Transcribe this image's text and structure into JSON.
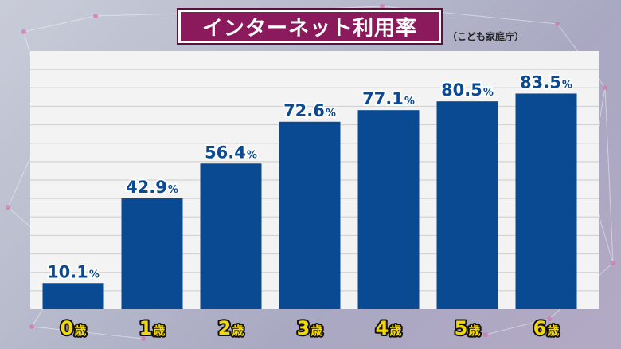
{
  "title": "インターネット利用率",
  "source": "（こども家庭庁）",
  "colors": {
    "bar": "#0a4a93",
    "plot_bg": "#f3f3f3",
    "grid": "#d3d3d3",
    "title_bg": "#8a1a5c",
    "category_text": "#f4d800",
    "value_text": "#0a4a93"
  },
  "chart_data": {
    "type": "bar",
    "categories": [
      "0",
      "1",
      "2",
      "3",
      "4",
      "5",
      "6"
    ],
    "category_suffix": "歳",
    "values": [
      10.1,
      42.9,
      56.4,
      72.6,
      77.1,
      80.5,
      83.5
    ],
    "value_labels": [
      "10.1",
      "42.9",
      "56.4",
      "72.6",
      "77.1",
      "80.5",
      "83.5"
    ],
    "value_unit": "%",
    "ylim": [
      0,
      100
    ],
    "grid": true
  }
}
